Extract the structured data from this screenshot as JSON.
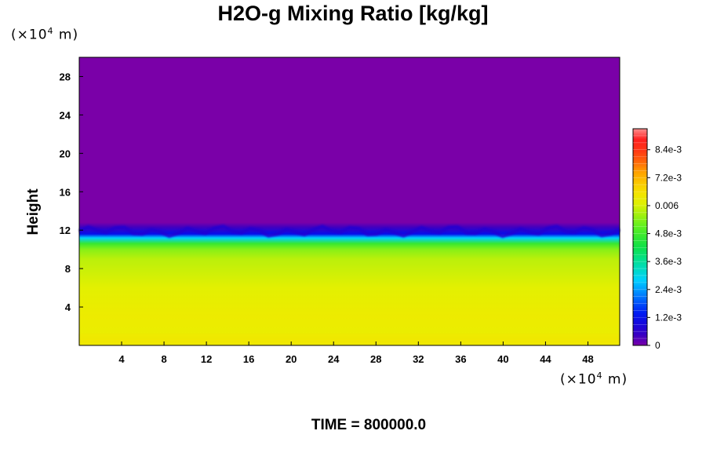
{
  "chart_data": {
    "type": "heatmap",
    "title": "H2O-g Mixing Ratio [kg/kg]",
    "ylabel": "Height",
    "xlabel": "",
    "x_unit_label": "(×10",
    "x_unit_exp": "4",
    "x_unit_suffix": " m)",
    "y_unit_label": "(×10",
    "y_unit_exp": "4",
    "y_unit_suffix": " m)",
    "xlim": [
      0,
      51
    ],
    "ylim": [
      0,
      30
    ],
    "x_ticks": [
      4,
      8,
      12,
      16,
      20,
      24,
      28,
      32,
      36,
      40,
      44,
      48
    ],
    "x_tick_labels": [
      "4",
      "8",
      "12",
      "16",
      "20",
      "24",
      "28",
      "32",
      "36",
      "40",
      "44",
      "48"
    ],
    "y_ticks": [
      4,
      8,
      12,
      16,
      20,
      24,
      28
    ],
    "y_tick_labels": [
      "4",
      "8",
      "12",
      "16",
      "20",
      "24",
      "28"
    ],
    "colorbar": {
      "range": [
        0,
        0.0093
      ],
      "ticks": [
        0,
        0.0012,
        0.0024,
        0.0036,
        0.0048,
        0.006,
        0.0072,
        0.0084
      ],
      "tick_labels": [
        "0",
        "1.2e-3",
        "2.4e-3",
        "3.6e-3",
        "4.8e-3",
        "0.006",
        "7.2e-3",
        "8.4e-3"
      ]
    },
    "field_profile": [
      {
        "height": 0,
        "value": 0.0064
      },
      {
        "height": 0.8,
        "value": 0.0062
      },
      {
        "height": 3,
        "value": 0.0063
      },
      {
        "height": 6,
        "value": 0.0061
      },
      {
        "height": 9,
        "value": 0.0058
      },
      {
        "height": 10,
        "value": 0.0054
      },
      {
        "height": 10.6,
        "value": 0.0047
      },
      {
        "height": 11.2,
        "value": 0.0028
      },
      {
        "height": 11.6,
        "value": 0.0012
      },
      {
        "height": 12.3,
        "value": 0.0004
      },
      {
        "height": 12.8,
        "value": 0
      },
      {
        "height": 30,
        "value": 0
      }
    ],
    "footer": "TIME = 800000.0"
  }
}
